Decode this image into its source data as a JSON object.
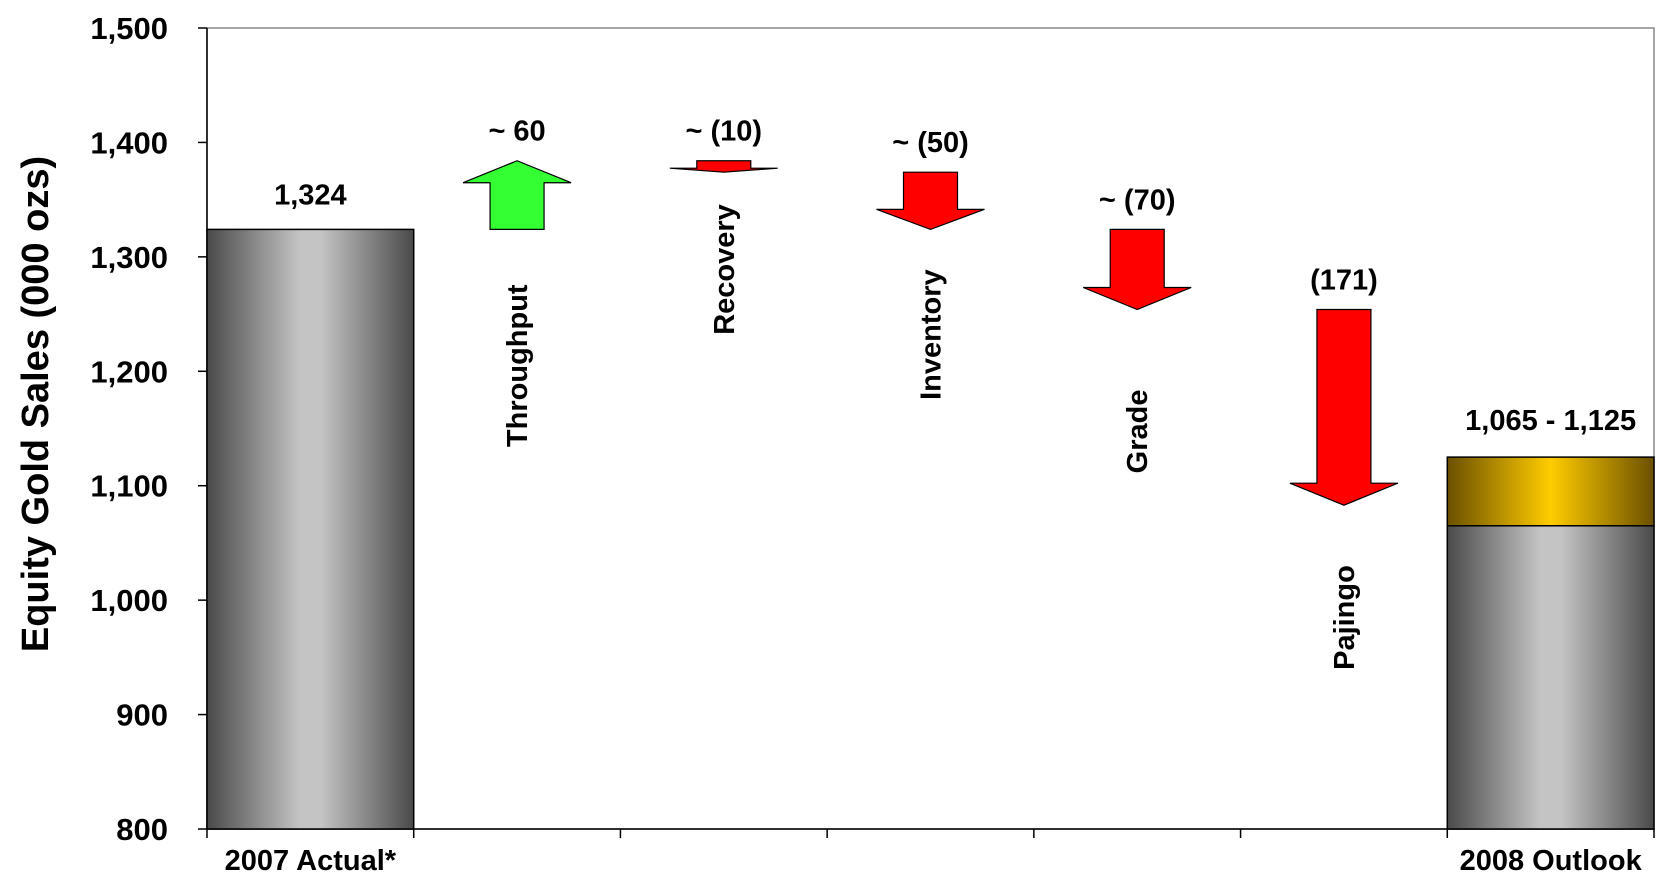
{
  "chart_data": {
    "type": "waterfall",
    "ylabel": "Equity Gold Sales (000 ozs)",
    "ylim": [
      800,
      1500
    ],
    "yticks": [
      800,
      900,
      "1,000",
      "1,100",
      "1,200",
      "1,300",
      "1,400",
      "1,500"
    ],
    "ytick_values": [
      800,
      900,
      1000,
      1100,
      1200,
      1300,
      1400,
      1500
    ],
    "grid": false,
    "bars": [
      {
        "category": "2007 Actual*",
        "value": 1324,
        "label": "1,324"
      },
      {
        "category": "2008 Outlook",
        "low": 1065,
        "high": 1125,
        "label": "1,065 - 1,125"
      }
    ],
    "steps": [
      {
        "name": "Throughput",
        "label": "~ 60",
        "delta": 60,
        "from": 1324,
        "to": 1384
      },
      {
        "name": "Recovery",
        "label": "~ (10)",
        "delta": -10,
        "from": 1384,
        "to": 1374
      },
      {
        "name": "Inventory",
        "label": "~ (50)",
        "delta": -50,
        "from": 1374,
        "to": 1324
      },
      {
        "name": "Grade",
        "label": "~ (70)",
        "delta": -70,
        "from": 1324,
        "to": 1254
      },
      {
        "name": "Pajingo",
        "label": "(171)",
        "delta": -171,
        "from": 1254,
        "to": 1083
      }
    ],
    "colors": {
      "increase": "#33ff33",
      "decrease": "#ff0000",
      "range": "#ffcc00",
      "base": "#a0a0a0"
    }
  }
}
